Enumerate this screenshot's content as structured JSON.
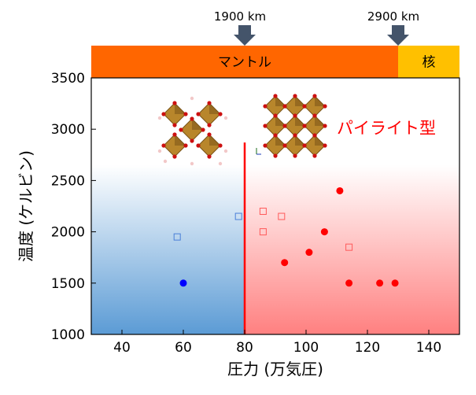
{
  "chart_data": {
    "type": "scatter",
    "xlabel": "圧力 (万気圧)",
    "ylabel": "温度 (ケルビン)",
    "xlim": [
      30,
      150
    ],
    "ylim": [
      1000,
      3500
    ],
    "xticks": [
      "40",
      "60",
      "80",
      "100",
      "120",
      "140"
    ],
    "yticks": [
      "1000",
      "1500",
      "2000",
      "2500",
      "3000",
      "3500"
    ],
    "boundary_pressure": 80,
    "boundary_temp_max": 2870,
    "regions": {
      "left_color": "#5b9bd5",
      "right_color": "#ff8080",
      "fade_top_temp": 2650
    },
    "series": [
      {
        "marker": "filled-circle",
        "color": "#0000ff",
        "points": [
          [
            60,
            1500
          ]
        ]
      },
      {
        "marker": "open-square",
        "color": "#4a7fd8",
        "points": [
          [
            58,
            1950
          ],
          [
            78,
            2150
          ]
        ]
      },
      {
        "marker": "filled-circle",
        "color": "#ff0000",
        "points": [
          [
            93,
            1700
          ],
          [
            101,
            1800
          ],
          [
            106,
            2000
          ],
          [
            111,
            2400
          ],
          [
            114,
            1500
          ],
          [
            124,
            1500
          ],
          [
            129,
            1500
          ]
        ]
      },
      {
        "marker": "open-square",
        "color": "#ff5a5a",
        "points": [
          [
            86,
            2200
          ],
          [
            86,
            2000
          ],
          [
            92,
            2150
          ],
          [
            114,
            1850
          ]
        ]
      }
    ],
    "annotations": {
      "phase_label": "パイライト型",
      "mantle_label": "マントル",
      "core_label": "核",
      "depth_1_label": "1900 km",
      "depth_2_label": "2900 km",
      "depth_1_pressure": 80,
      "depth_2_pressure": 130,
      "mantle_color": "#ff6600",
      "core_color": "#ffc000",
      "arrow_color": "#44546a",
      "boundary_line_color": "#ff0000"
    }
  }
}
